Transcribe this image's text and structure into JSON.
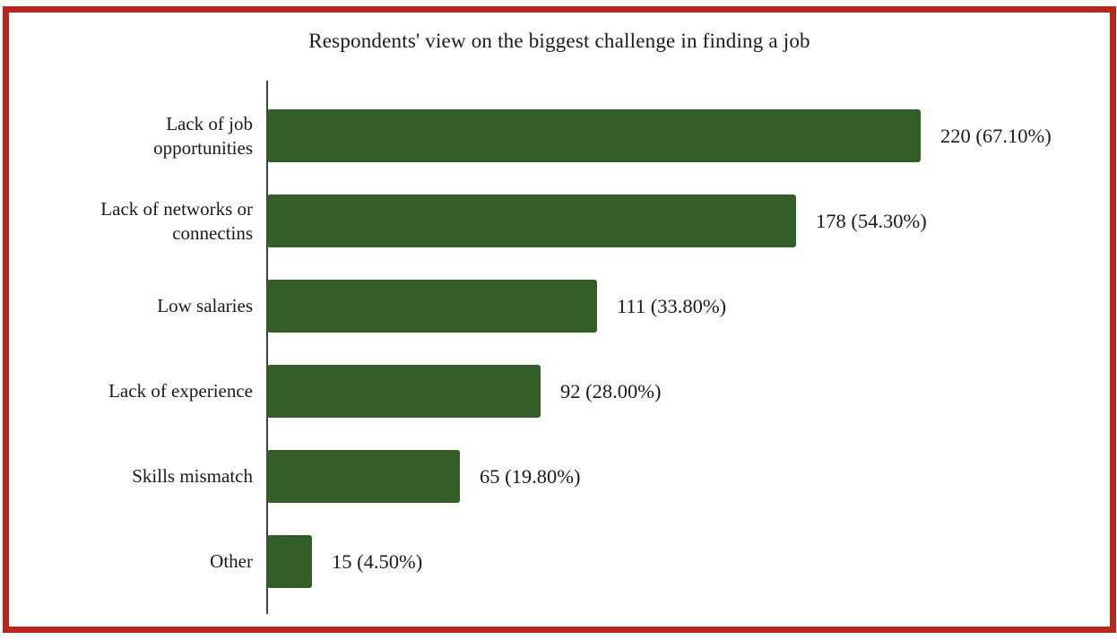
{
  "frame": {
    "border_color": "#b7271e"
  },
  "chart_data": {
    "type": "bar",
    "orientation": "horizontal",
    "title": "Respondents' view on the biggest challenge in finding a job",
    "categories": [
      "Lack of job opportunities",
      "Lack of networks or connectins",
      "Low salaries",
      "Lack of experience",
      "Skills mismatch",
      "Other"
    ],
    "category_display": [
      "Lack of job\nopportunities",
      "Lack of networks or\nconnectins",
      "Low salaries",
      "Lack of experience",
      "Skills mismatch",
      "Other"
    ],
    "values": [
      220,
      178,
      111,
      92,
      65,
      15
    ],
    "percentages": [
      67.1,
      54.3,
      33.8,
      28.0,
      19.8,
      4.5
    ],
    "data_labels": [
      "220 (67.10%)",
      "178 (54.30%)",
      "111 (33.80%)",
      "92 (28.00%)",
      "65 (19.80%)",
      "15 (4.50%)"
    ],
    "bar_color": "#345d27",
    "axis_color": "#404040",
    "text_color": "#1a1a1a",
    "xlim": [
      0,
      220
    ],
    "grid": false,
    "legend": false,
    "data_labels_visible": true
  }
}
